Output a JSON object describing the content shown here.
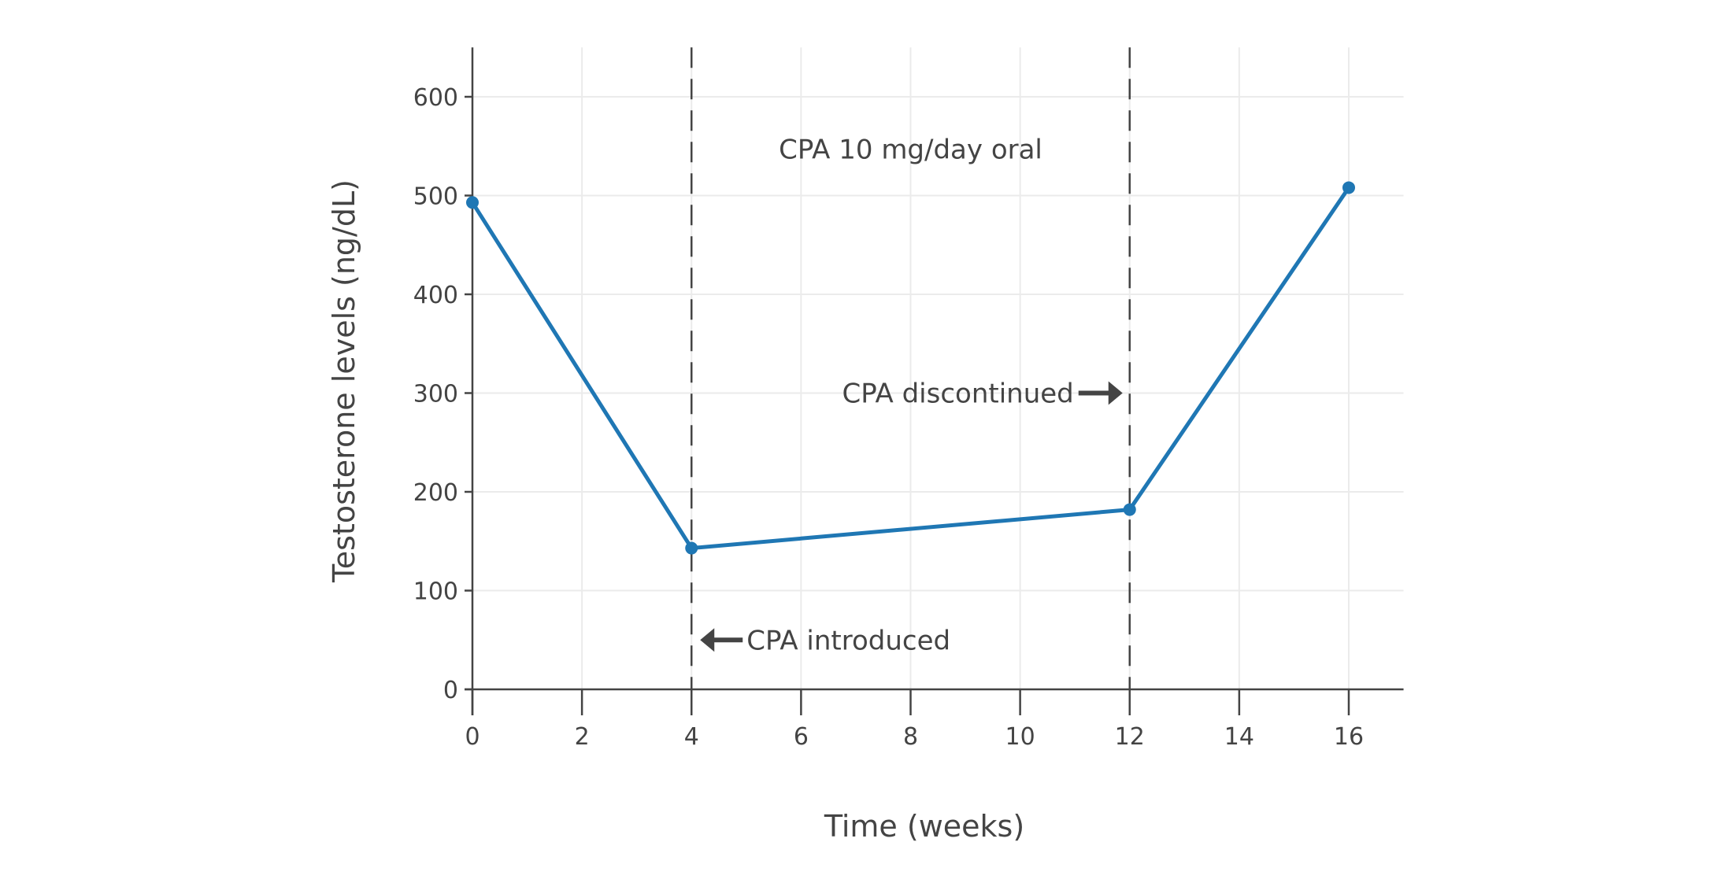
{
  "chart_data": {
    "type": "line",
    "title": "",
    "xlabel": "Time (weeks)",
    "ylabel": "Testosterone levels (ng/dL)",
    "xlim": [
      0,
      17
    ],
    "ylim": [
      0,
      650
    ],
    "xticks": [
      0,
      2,
      4,
      6,
      8,
      10,
      12,
      14,
      16
    ],
    "yticks": [
      0,
      100,
      200,
      300,
      400,
      500,
      600
    ],
    "grid": true,
    "series": [
      {
        "x": [
          0,
          4,
          12,
          16
        ],
        "y": [
          493,
          143,
          182,
          508
        ],
        "color": "#1f77b4",
        "markers": true
      }
    ],
    "vlines": [
      {
        "x": 4,
        "style": "dashed",
        "color": "#444444"
      },
      {
        "x": 12,
        "style": "dashed",
        "color": "#444444"
      }
    ],
    "annotations": [
      {
        "text": "CPA 10 mg/day oral",
        "x": 8,
        "y": 547
      },
      {
        "text": "CPA discontinued",
        "x": 12,
        "y": 300,
        "arrow": "right"
      },
      {
        "text": "CPA introduced",
        "x": 4,
        "y": 50,
        "arrow": "left"
      }
    ]
  }
}
